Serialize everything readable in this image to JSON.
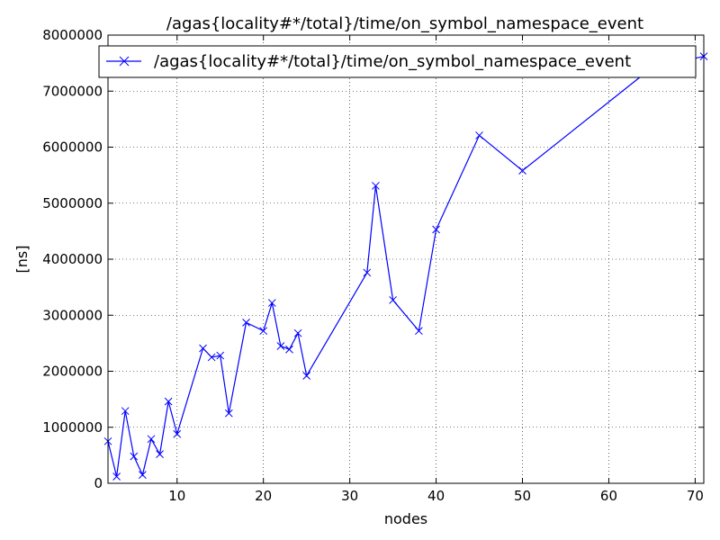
{
  "chart_data": {
    "type": "line",
    "title": "/agas{locality#*/total}/time/on_symbol_namespace_event",
    "xlabel": "nodes",
    "ylabel": "[ns]",
    "xlim": [
      2,
      71
    ],
    "ylim": [
      0,
      8000000
    ],
    "xticks": [
      10,
      20,
      30,
      40,
      50,
      60,
      70
    ],
    "yticks": [
      0,
      1000000,
      2000000,
      3000000,
      4000000,
      5000000,
      6000000,
      7000000,
      8000000
    ],
    "grid": true,
    "legend_position": "top",
    "series": [
      {
        "name": "/agas{locality#*/total}/time/on_symbol_namespace_event",
        "color": "#0000ff",
        "marker": "x",
        "x": [
          2,
          3,
          4,
          5,
          6,
          7,
          8,
          9,
          10,
          13,
          14,
          15,
          16,
          18,
          20,
          21,
          22,
          23,
          24,
          25,
          32,
          33,
          35,
          38,
          40,
          45,
          50,
          65,
          71
        ],
        "y": [
          750000,
          120000,
          1290000,
          480000,
          150000,
          790000,
          520000,
          1460000,
          880000,
          2410000,
          2250000,
          2280000,
          1250000,
          2870000,
          2720000,
          3220000,
          2450000,
          2390000,
          2680000,
          1920000,
          3760000,
          5310000,
          3270000,
          2720000,
          4530000,
          6210000,
          5580000,
          7420000,
          7620000
        ]
      }
    ]
  }
}
